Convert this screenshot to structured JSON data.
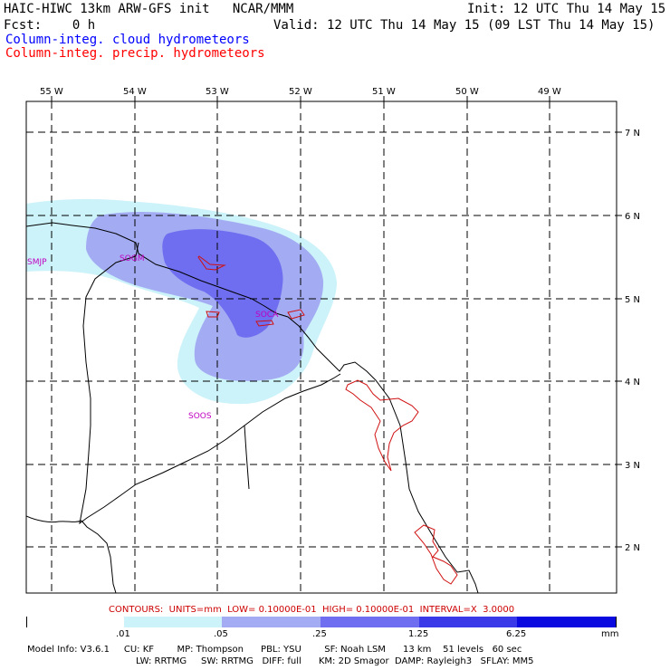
{
  "header": {
    "title_left": "HAIC-HIWC 13km ARW-GFS init   NCAR/MMM",
    "init": "Init: 12 UTC Thu 14 May 15",
    "fcst": "Fcst:    0 h",
    "valid": "Valid: 12 UTC Thu 14 May 15 (09 LST Thu 14 May 15)",
    "field1": "Column-integ. cloud hydrometeors",
    "field2": "Column-integ. precip. hydrometeors"
  },
  "colors": {
    "field1": "#0000ff",
    "field2": "#ff0000",
    "contour_text": "#cc0000",
    "station": "#c000c0",
    "precip_contour": "#d01010"
  },
  "map": {
    "lon_labels": [
      "55 W",
      "54 W",
      "53 W",
      "52 W",
      "51 W",
      "50 W",
      "49 W"
    ],
    "lat_labels": [
      "7 N",
      "6 N",
      "5 N",
      "4 N",
      "3 N",
      "2 N"
    ],
    "stations": [
      "SMJP",
      "SOGM",
      "SOCA",
      "SOOS"
    ]
  },
  "footer": {
    "contours": "CONTOURS:  UNITS=mm  LOW= 0.10000E-01  HIGH= 0.10000E-01  INTERVAL=X  3.0000",
    "colorbar": {
      "colors": [
        "#ffffff",
        "#ccf2fa",
        "#a3acf2",
        "#6f6ef0",
        "#3a3ae8",
        "#0a0ae0"
      ],
      "ticks": [
        ".01",
        ".05",
        ".25",
        "1.25",
        "6.25",
        "mm"
      ]
    },
    "model_info_1": "Model Info: V3.6.1     CU: KF        MP: Thompson      PBL: YSU        SF: Noah LSM      13 km    51 levels   60 sec",
    "model_info_2": "LW: RRTMG     SW: RRTMG   DIFF: full      KM: 2D Smagor  DAMP: Rayleigh3   SFLAY: MM5"
  }
}
